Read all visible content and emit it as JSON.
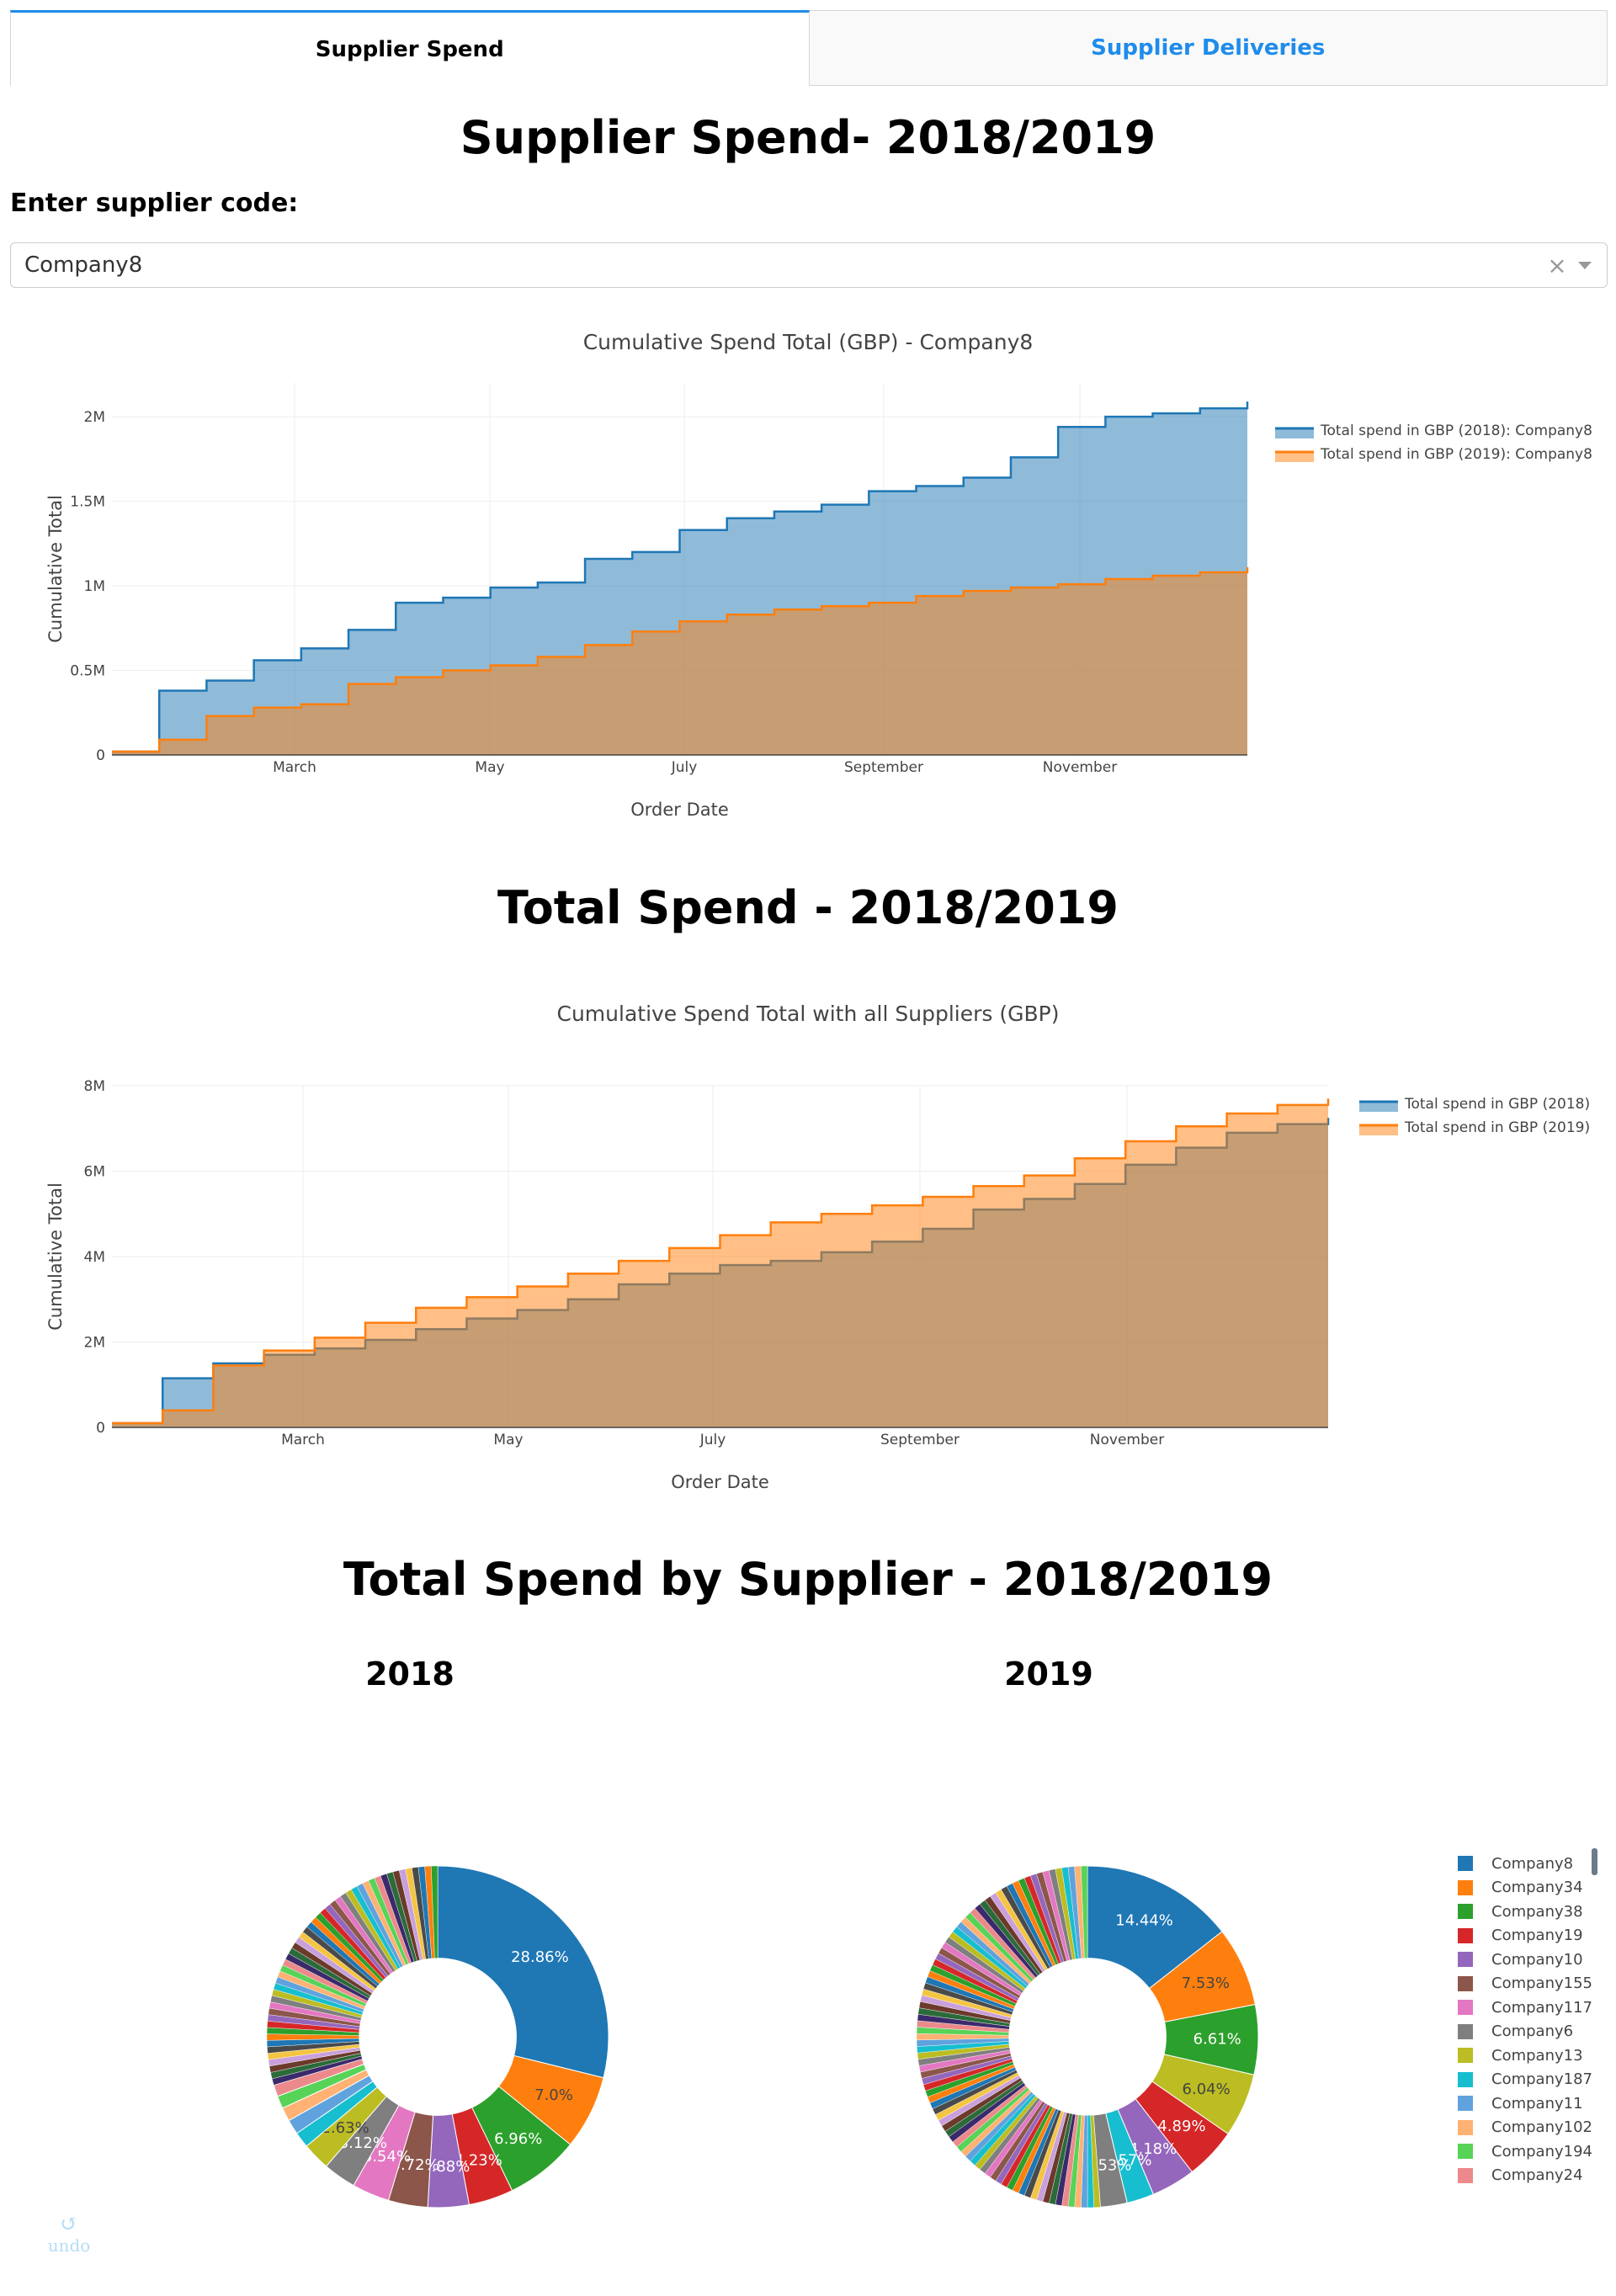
{
  "tabs": [
    {
      "label": "Supplier Spend",
      "active": true
    },
    {
      "label": "Supplier Deliveries",
      "active": false
    }
  ],
  "section1": {
    "heading": "Supplier Spend- 2018/2019",
    "input_label": "Enter supplier code:",
    "dropdown_value": "Company8",
    "clear_glyph": "×"
  },
  "section2": {
    "heading": "Total Spend - 2018/2019"
  },
  "section3": {
    "heading": "Total Spend by Supplier - 2018/2019",
    "pie_left_title": "2018",
    "pie_right_title": "2019"
  },
  "undo_label": "undo",
  "colors": {
    "blue": "#1f77b4",
    "orange": "#ff7f0e",
    "tab_accent": "#1f8ceb"
  },
  "chart_data": [
    {
      "type": "area",
      "title": "Cumulative Spend Total (GBP) - Company8",
      "xlabel": "Order Date",
      "ylabel": "Cumulative Total",
      "x_tick_labels": [
        "March",
        "May",
        "July",
        "September",
        "November"
      ],
      "y_tick_labels": [
        "0",
        "0.5M",
        "1M",
        "1.5M",
        "2M"
      ],
      "ylim": [
        0,
        2200000
      ],
      "x_dates": [
        "Jan 1",
        "Jan 15",
        "Feb 1",
        "Feb 15",
        "Mar 1",
        "Mar 15",
        "Apr 1",
        "Apr 15",
        "May 1",
        "May 15",
        "Jun 1",
        "Jun 15",
        "Jul 1",
        "Jul 15",
        "Aug 1",
        "Aug 15",
        "Sep 1",
        "Sep 15",
        "Oct 1",
        "Oct 15",
        "Nov 1",
        "Nov 15",
        "Dec 1",
        "Dec 15",
        "Dec 31"
      ],
      "series": [
        {
          "name": "Total spend in GBP (2018): Company8",
          "color": "#1f77b4",
          "values": [
            20000,
            380000,
            440000,
            560000,
            630000,
            740000,
            900000,
            930000,
            990000,
            1020000,
            1160000,
            1200000,
            1330000,
            1400000,
            1440000,
            1480000,
            1560000,
            1590000,
            1640000,
            1760000,
            1940000,
            2000000,
            2020000,
            2050000,
            2090000
          ]
        },
        {
          "name": "Total spend in GBP (2019): Company8",
          "color": "#ff7f0e",
          "values": [
            20000,
            90000,
            230000,
            280000,
            300000,
            420000,
            460000,
            500000,
            530000,
            580000,
            650000,
            730000,
            790000,
            830000,
            860000,
            880000,
            900000,
            940000,
            970000,
            990000,
            1010000,
            1040000,
            1060000,
            1080000,
            1110000
          ]
        }
      ],
      "legend": "right"
    },
    {
      "type": "area",
      "title": "Cumulative Spend Total with all Suppliers (GBP)",
      "xlabel": "Order Date",
      "ylabel": "Cumulative Total",
      "x_tick_labels": [
        "March",
        "May",
        "July",
        "September",
        "November"
      ],
      "y_tick_labels": [
        "0",
        "2M",
        "4M",
        "6M",
        "8M"
      ],
      "ylim": [
        0,
        8000000
      ],
      "x_dates": [
        "Jan 1",
        "Jan 15",
        "Feb 1",
        "Feb 15",
        "Mar 1",
        "Mar 15",
        "Apr 1",
        "Apr 15",
        "May 1",
        "May 15",
        "Jun 1",
        "Jun 15",
        "Jul 1",
        "Jul 15",
        "Aug 1",
        "Aug 15",
        "Sep 1",
        "Sep 15",
        "Oct 1",
        "Oct 15",
        "Nov 1",
        "Nov 15",
        "Dec 1",
        "Dec 15",
        "Dec 31"
      ],
      "series": [
        {
          "name": "Total spend in GBP (2018)",
          "color": "#1f77b4",
          "values": [
            100000,
            1150000,
            1500000,
            1700000,
            1850000,
            2050000,
            2300000,
            2550000,
            2750000,
            3000000,
            3350000,
            3600000,
            3800000,
            3900000,
            4100000,
            4350000,
            4650000,
            5100000,
            5350000,
            5700000,
            6150000,
            6550000,
            6900000,
            7100000,
            7250000
          ]
        },
        {
          "name": "Total spend in GBP (2019)",
          "color": "#ff7f0e",
          "values": [
            100000,
            400000,
            1450000,
            1800000,
            2100000,
            2450000,
            2800000,
            3050000,
            3300000,
            3600000,
            3900000,
            4200000,
            4500000,
            4800000,
            5000000,
            5200000,
            5400000,
            5650000,
            5900000,
            6300000,
            6700000,
            7050000,
            7350000,
            7550000,
            7700000
          ]
        }
      ],
      "legend": "right"
    },
    {
      "type": "pie",
      "title": "2018",
      "hole": 0.46,
      "labels": [
        "Company8",
        "Company34",
        "Company38",
        "Company19",
        "Company10",
        "Company155",
        "Company117",
        "Company6",
        "Company13",
        "Company187",
        "Company11",
        "Company102",
        "Company194",
        "Company24"
      ],
      "slice_labels": [
        "28.86%",
        "7.0%",
        "6.96%",
        "4.23%",
        "3.88%",
        "3.72%",
        "3.54%",
        "3.12%",
        "2.63%",
        "",
        "",
        "",
        "",
        ""
      ],
      "values": [
        28.86,
        7.0,
        6.96,
        4.23,
        3.88,
        3.72,
        3.54,
        3.12,
        2.63,
        1.5,
        1.4,
        1.3,
        1.2,
        1.1
      ]
    },
    {
      "type": "pie",
      "title": "2019",
      "hole": 0.46,
      "labels": [
        "Company8",
        "Company34",
        "Company38",
        "Company13",
        "Company19",
        "Company10",
        "Company187",
        "Company6"
      ],
      "slice_labels": [
        "14.44%",
        "7.53%",
        "6.61%",
        "6.04%",
        "4.89%",
        "4.18%",
        "2.57%",
        "2.53%"
      ],
      "values": [
        14.44,
        7.53,
        6.61,
        6.04,
        4.89,
        4.18,
        2.57,
        2.53
      ]
    }
  ],
  "legend_items": [
    {
      "label": "Company8",
      "color": "#1f77b4"
    },
    {
      "label": "Company34",
      "color": "#ff7f0e"
    },
    {
      "label": "Company38",
      "color": "#2ca02c"
    },
    {
      "label": "Company19",
      "color": "#d62728"
    },
    {
      "label": "Company10",
      "color": "#9467bd"
    },
    {
      "label": "Company155",
      "color": "#8c564b"
    },
    {
      "label": "Company117",
      "color": "#e377c2"
    },
    {
      "label": "Company6",
      "color": "#7f7f7f"
    },
    {
      "label": "Company13",
      "color": "#bcbd22"
    },
    {
      "label": "Company187",
      "color": "#17becf"
    },
    {
      "label": "Company11",
      "color": "#5fa2dd"
    },
    {
      "label": "Company102",
      "color": "#ffb273"
    },
    {
      "label": "Company194",
      "color": "#57d357"
    },
    {
      "label": "Company24",
      "color": "#ec8a8b"
    }
  ]
}
